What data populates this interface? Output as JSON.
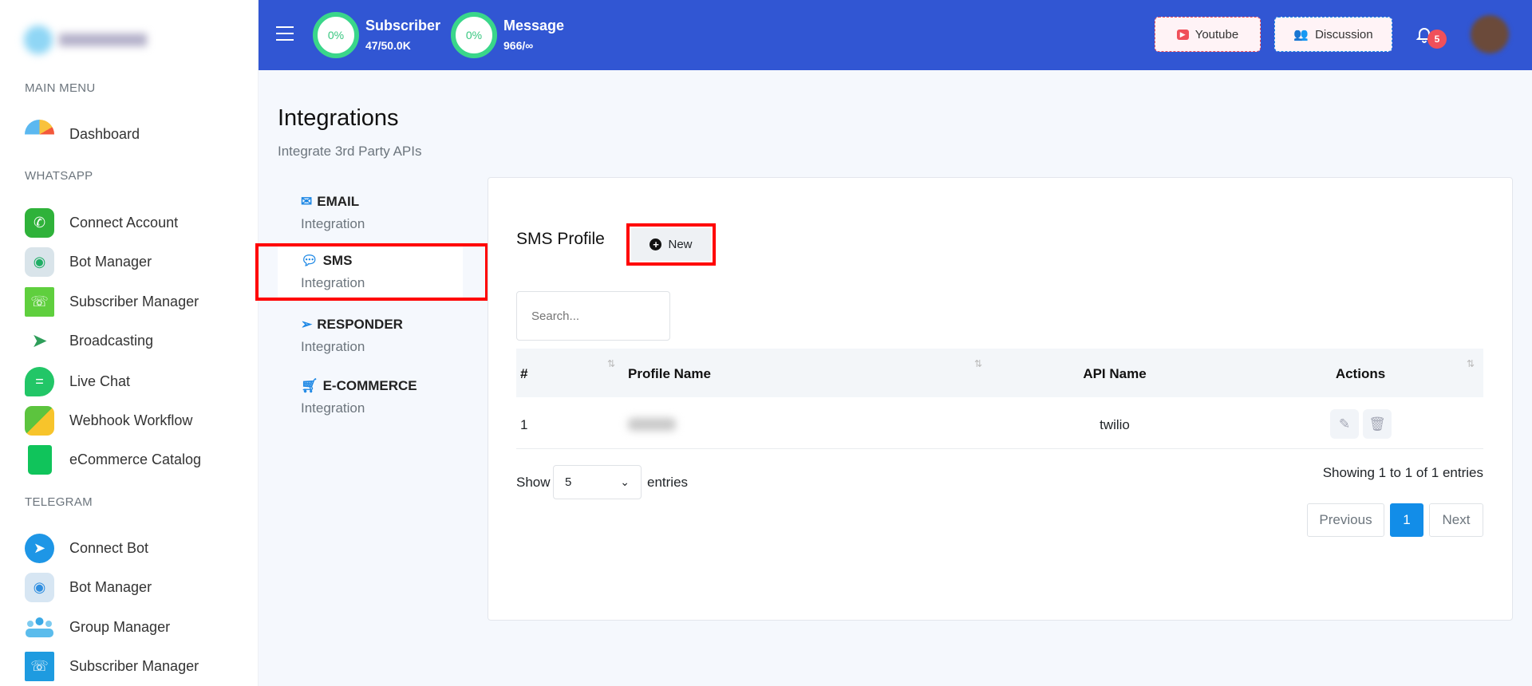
{
  "sidebar": {
    "sections": [
      {
        "title": "MAIN MENU",
        "items": [
          {
            "label": "Dashboard",
            "icon": "dashboard-gauge-icon"
          }
        ]
      },
      {
        "title": "WHATSAPP",
        "items": [
          {
            "label": "Connect Account",
            "icon": "whatsapp-icon"
          },
          {
            "label": "Bot Manager",
            "icon": "robot-icon"
          },
          {
            "label": "Subscriber Manager",
            "icon": "contact-book-icon"
          },
          {
            "label": "Broadcasting",
            "icon": "paper-plane-icon"
          },
          {
            "label": "Live Chat",
            "icon": "chat-bubble-icon"
          },
          {
            "label": "Webhook Workflow",
            "icon": "puzzle-icon"
          },
          {
            "label": "eCommerce Catalog",
            "icon": "shopping-bag-icon"
          }
        ]
      },
      {
        "title": "TELEGRAM",
        "items": [
          {
            "label": "Connect Bot",
            "icon": "telegram-icon"
          },
          {
            "label": "Bot Manager",
            "icon": "robot-icon"
          },
          {
            "label": "Group Manager",
            "icon": "group-icon"
          },
          {
            "label": "Subscriber Manager",
            "icon": "contact-book-icon"
          }
        ]
      }
    ]
  },
  "header": {
    "subscriber": {
      "percent": "0%",
      "title": "Subscriber",
      "value": "47/50.0K"
    },
    "message": {
      "percent": "0%",
      "title": "Message",
      "value": "966/∞"
    },
    "youtube_label": "Youtube",
    "discussion_label": "Discussion",
    "notification_count": "5",
    "colors": {
      "header_bg": "#3156d3",
      "ring": "#3ad68a"
    }
  },
  "page": {
    "title": "Integrations",
    "subtitle": "Integrate 3rd Party APIs"
  },
  "tabs": [
    {
      "title": "EMAIL",
      "subtitle": "Integration",
      "icon": "envelope-icon"
    },
    {
      "title": "SMS",
      "subtitle": "Integration",
      "icon": "sms-bubble-icon",
      "active": true
    },
    {
      "title": "RESPONDER",
      "subtitle": "Integration",
      "icon": "paper-plane-icon"
    },
    {
      "title": "E-COMMERCE",
      "subtitle": "Integration",
      "icon": "cart-icon"
    }
  ],
  "card": {
    "title": "SMS Profile",
    "new_label": "New",
    "search_placeholder": "Search...",
    "columns": [
      "#",
      "Profile Name",
      "API Name",
      "Actions"
    ],
    "rows": [
      {
        "num": "1",
        "profile_name": "",
        "api_name": "twilio"
      }
    ],
    "show_label": "Show",
    "page_size": "5",
    "entries_label": "entries",
    "info": "Showing 1 to 1 of 1 entries",
    "pagination": {
      "previous": "Previous",
      "current": "1",
      "next": "Next"
    }
  }
}
